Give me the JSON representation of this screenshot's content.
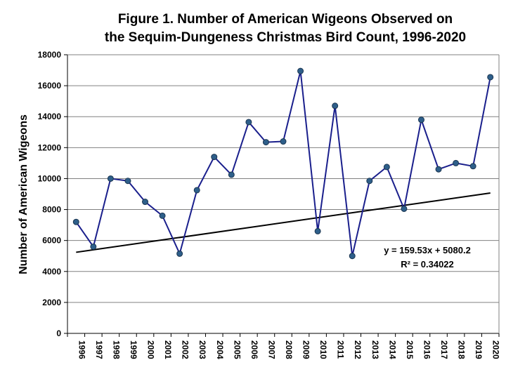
{
  "chart_data": {
    "type": "line",
    "title_line1": "Figure 1. Number of American Wigeons Observed on",
    "title_line2": "the Sequim-Dungeness Christmas Bird Count, 1996-2020",
    "xlabel": "",
    "ylabel": "Number of American Wigeons",
    "ylim": [
      0,
      18000
    ],
    "yticks": [
      0,
      2000,
      4000,
      6000,
      8000,
      10000,
      12000,
      14000,
      16000,
      18000
    ],
    "grid": true,
    "categories": [
      "1996",
      "1997",
      "1998",
      "1999",
      "2000",
      "2001",
      "2002",
      "2003",
      "2004",
      "2005",
      "2006",
      "2007",
      "2008",
      "2009",
      "2010",
      "2011",
      "2012",
      "2013",
      "2014",
      "2015",
      "2016",
      "2017",
      "2018",
      "2019",
      "2020"
    ],
    "series": [
      {
        "values": [
          7200,
          5600,
          10000,
          9850,
          8500,
          7600,
          5150,
          9250,
          11400,
          10250,
          13650,
          12350,
          12400,
          16950,
          6600,
          14700,
          5000,
          9850,
          10750,
          8050,
          13800,
          10600,
          11000,
          10800,
          16550
        ],
        "color": "#1a1f8c",
        "marker_color": "#2e5f8a"
      }
    ],
    "trendline": {
      "equation": "y = 159.53x + 5080.2",
      "r_squared": "R² = 0.34022",
      "slope": 159.53,
      "intercept": 5080.2,
      "color": "#000000"
    }
  }
}
